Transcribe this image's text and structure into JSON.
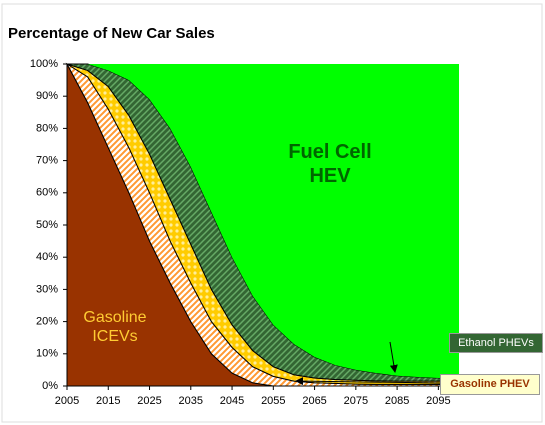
{
  "chart_data": {
    "type": "stacked_area",
    "title": "Percentage of New Car Sales",
    "x": [
      2005,
      2010,
      2015,
      2020,
      2025,
      2030,
      2035,
      2040,
      2045,
      2050,
      2055,
      2060,
      2065,
      2070,
      2075,
      2080,
      2085,
      2090,
      2095,
      2100
    ],
    "xlim": [
      2005,
      2100
    ],
    "xticks": [
      2005,
      2015,
      2025,
      2035,
      2045,
      2055,
      2065,
      2075,
      2085,
      2095
    ],
    "ylim": [
      0,
      100
    ],
    "yticks": [
      {
        "value": 0,
        "label": "0%"
      },
      {
        "value": 10,
        "label": "10%"
      },
      {
        "value": 20,
        "label": "20%"
      },
      {
        "value": 30,
        "label": "30%"
      },
      {
        "value": 40,
        "label": "40%"
      },
      {
        "value": 50,
        "label": "50%"
      },
      {
        "value": 60,
        "label": "60%"
      },
      {
        "value": 70,
        "label": "70%"
      },
      {
        "value": 80,
        "label": "80%"
      },
      {
        "value": 90,
        "label": "90%"
      },
      {
        "value": 100,
        "label": "100%"
      }
    ],
    "series": [
      {
        "name": "Gasoline ICEVs",
        "color": "#993300",
        "values": [
          100,
          88,
          74,
          60,
          45,
          32,
          20,
          10,
          4,
          1,
          0,
          0,
          0,
          0,
          0,
          0,
          0,
          0,
          0,
          0
        ]
      },
      {
        "color": "#ff9933",
        "values": [
          0,
          8,
          12,
          14,
          15,
          13,
          12,
          10,
          8,
          5,
          3,
          1.5,
          1,
          0.8,
          0.6,
          0.5,
          0.5,
          0.5,
          0.5,
          0.5
        ]
      },
      {
        "name": "Gasoline PHEV",
        "color": "#ffcc00",
        "values": [
          0,
          2,
          7,
          10,
          12,
          13,
          12,
          10,
          7,
          5,
          3,
          2,
          1.5,
          1.2,
          1.2,
          1.1,
          1,
          1,
          1,
          1
        ]
      },
      {
        "name": "Ethanol PHEVs",
        "color": "#336633",
        "values": [
          0,
          2,
          5,
          11,
          17,
          22,
          24,
          24,
          21,
          17,
          13,
          9.5,
          6.5,
          4.5,
          3.2,
          2.4,
          1.7,
          1.3,
          1,
          1
        ]
      },
      {
        "name": "Fuel Cell HEV",
        "color": "#00ff00",
        "values": [
          0,
          0,
          2,
          5,
          11,
          20,
          32,
          46,
          60,
          72,
          81,
          87,
          91,
          93.5,
          95,
          96,
          96.8,
          97.2,
          97.5,
          97.5
        ]
      }
    ]
  }
}
